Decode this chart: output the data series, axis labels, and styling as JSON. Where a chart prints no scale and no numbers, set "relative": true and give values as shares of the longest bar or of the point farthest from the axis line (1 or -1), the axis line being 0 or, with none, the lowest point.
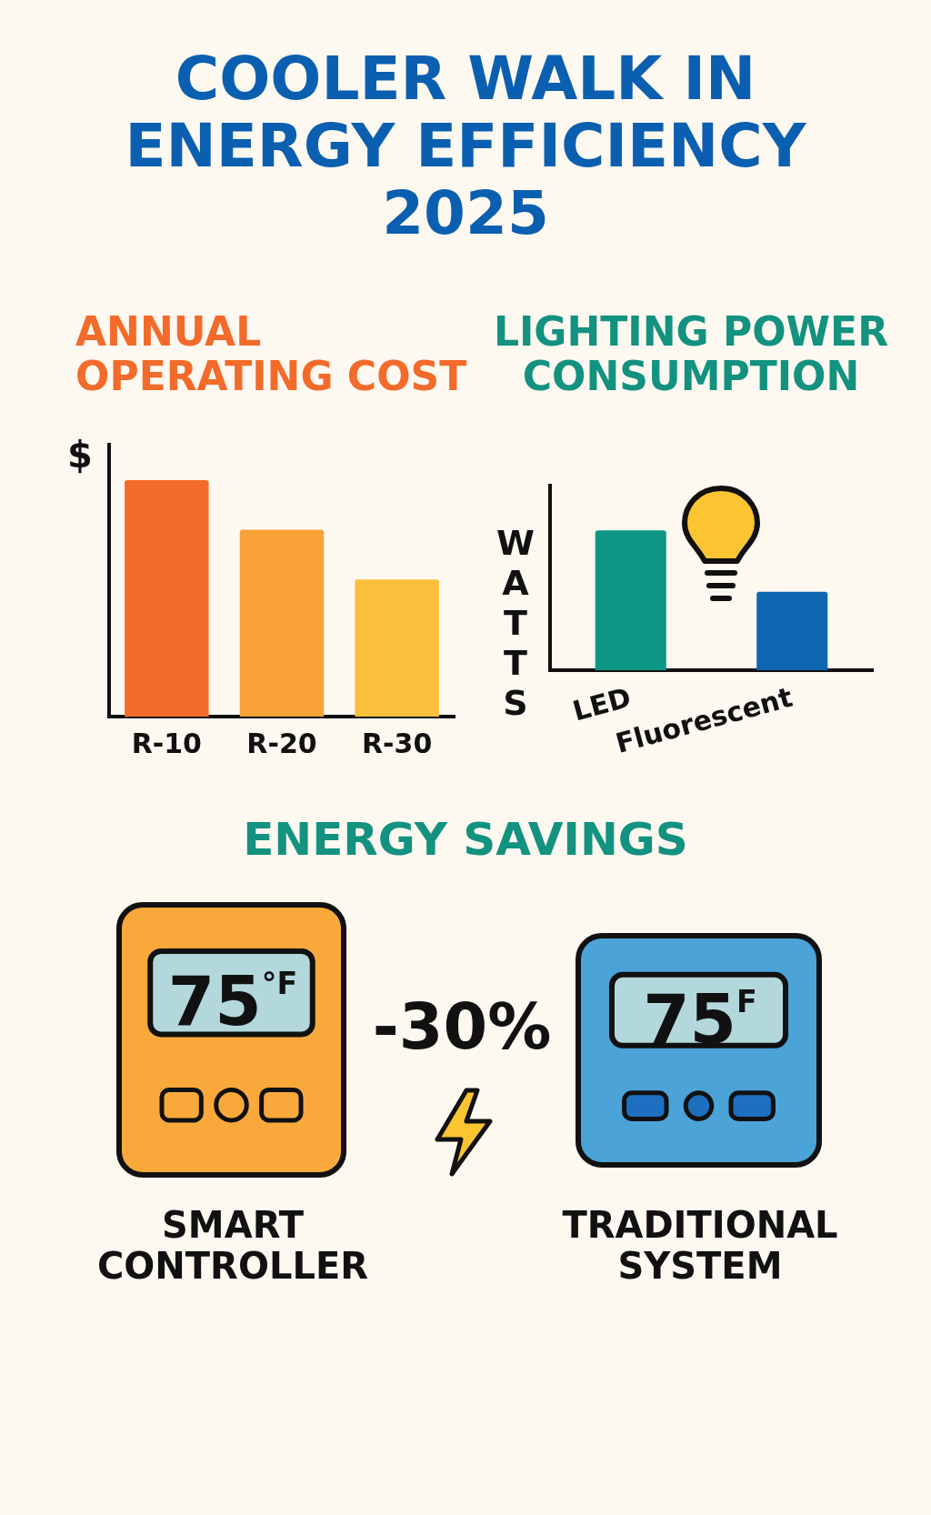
{
  "chart_data": [
    {
      "type": "other",
      "title": "COOLER WALK IN ENERGY EFFICIENCY 2025"
    },
    {
      "type": "bar",
      "title": "ANNUAL OPERATING COST",
      "ylabel": "$",
      "categories": [
        "R-10",
        "R-20",
        "R-30"
      ],
      "values": [
        1,
        0.79,
        0.58
      ],
      "colors": [
        "#f26b2a",
        "#f9a23a",
        "#fbbf3c"
      ],
      "relative": true
    },
    {
      "type": "bar",
      "title": "LIGHTING POWER CONSUMPTION",
      "ylabel": "WATTS",
      "categories": [
        "LED",
        "Fluorescent"
      ],
      "values": [
        1,
        0.56
      ],
      "colors": [
        "#0e9684",
        "#0f67b1"
      ],
      "relative": true
    },
    {
      "type": "other",
      "title": "ENERGY SAVINGS",
      "annotations": [
        "75$^{°F}$",
        "-30%",
        "75$^{F}$",
        "SMART CONTROLLER",
        "TRADITIONAL SYSTEM"
      ]
    }
  ]
}
